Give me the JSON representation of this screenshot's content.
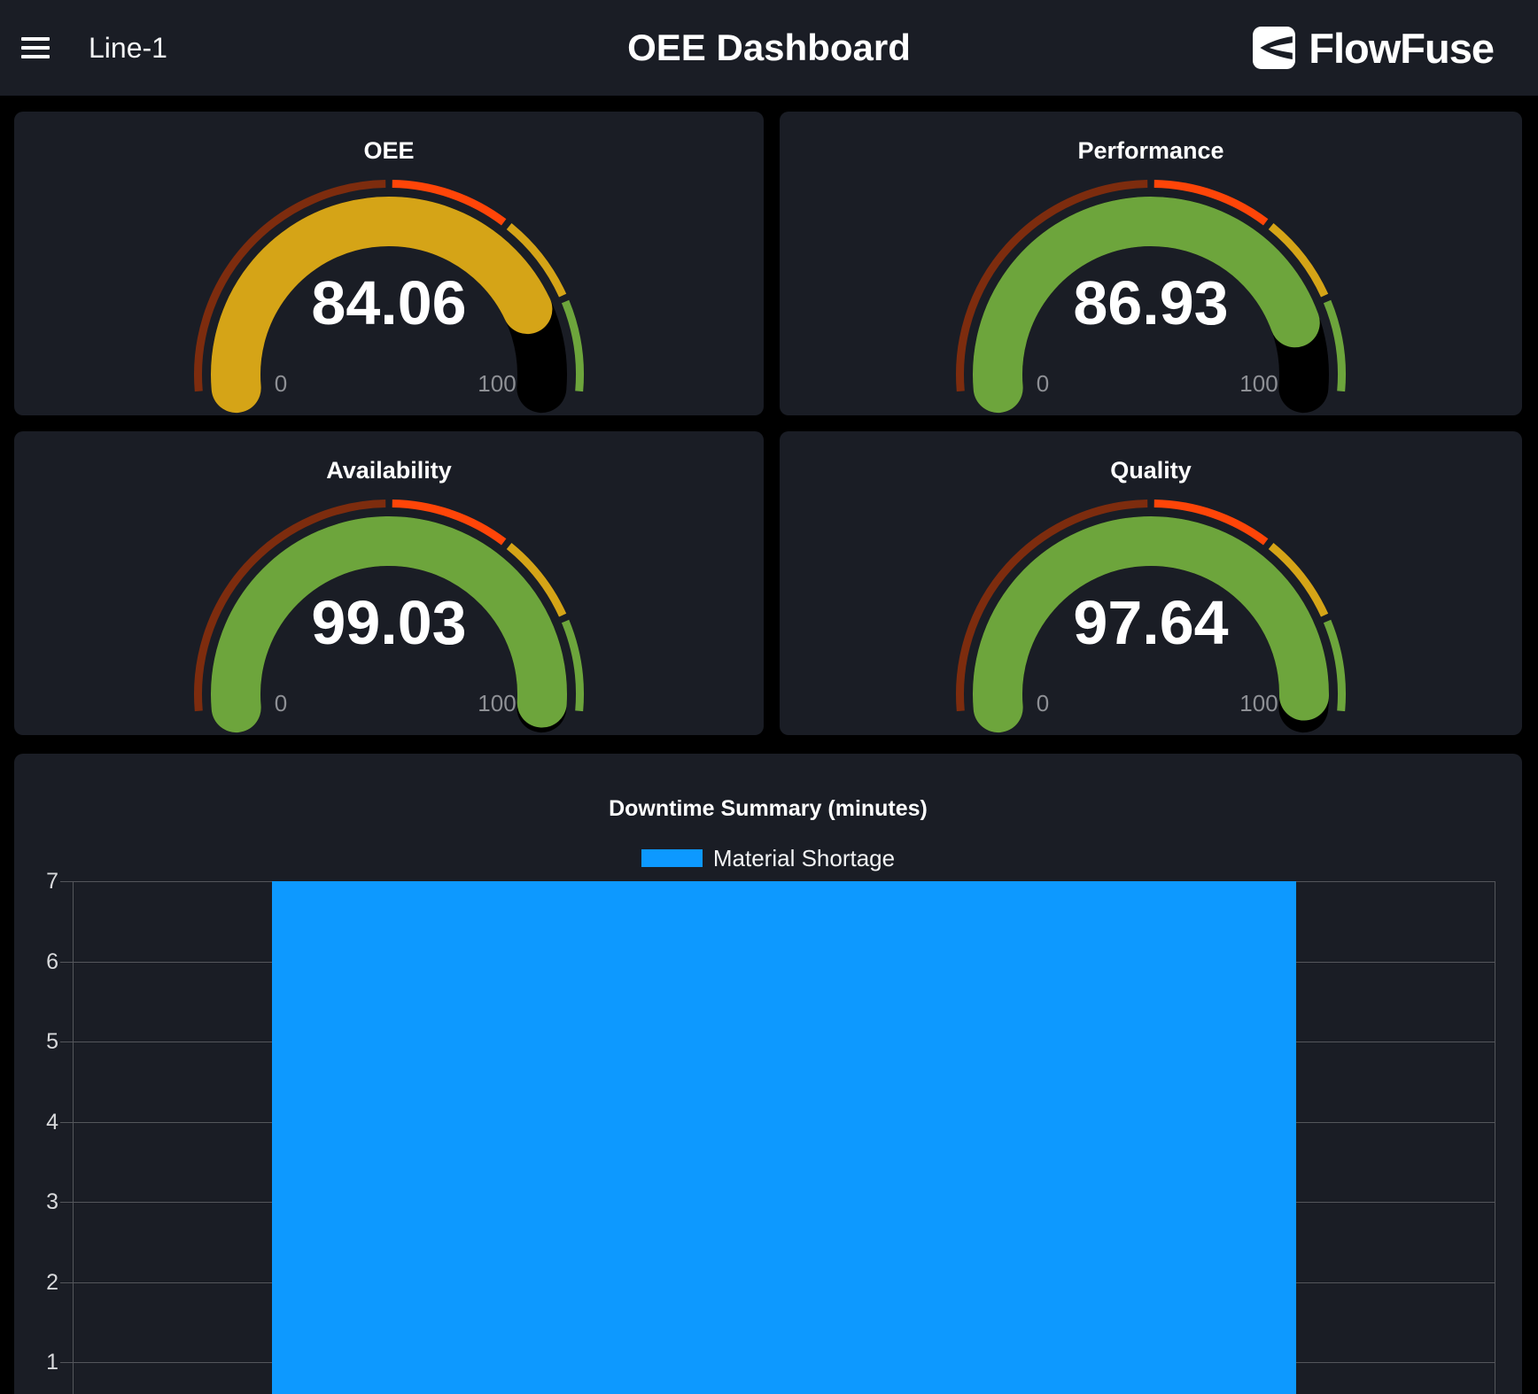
{
  "header": {
    "nav_label": "Line-1",
    "title": "OEE Dashboard",
    "brand": "FlowFuse"
  },
  "gauges": [
    {
      "title": "OEE",
      "value": "84.06",
      "min": "0",
      "max": "100",
      "color": "#D5A417"
    },
    {
      "title": "Performance",
      "value": "86.93",
      "min": "0",
      "max": "100",
      "color": "#6DA53C"
    },
    {
      "title": "Availability",
      "value": "99.03",
      "min": "0",
      "max": "100",
      "color": "#6DA53C"
    },
    {
      "title": "Quality",
      "value": "97.64",
      "min": "0",
      "max": "100",
      "color": "#6DA53C"
    }
  ],
  "gauge_bands": [
    {
      "from": 0,
      "to": 50,
      "color": "#7D2C0E"
    },
    {
      "from": 50,
      "to": 70,
      "color": "#FF4508"
    },
    {
      "from": 70,
      "to": 85,
      "color": "#D5A417"
    },
    {
      "from": 85,
      "to": 100,
      "color": "#6DA53C"
    }
  ],
  "chart_data": {
    "type": "bar",
    "title": "Downtime Summary (minutes)",
    "categories": [
      "Material Shortage"
    ],
    "series": [
      {
        "name": "Material Shortage",
        "color": "#0D99FF",
        "values": [
          7
        ]
      }
    ],
    "ylim": [
      0,
      7
    ],
    "yticks": [
      7,
      6,
      5,
      4,
      3,
      2,
      1
    ],
    "legend_position": "top",
    "grid": true
  },
  "colors": {
    "page_bg": "#000000",
    "card_bg": "#1A1D25",
    "grid": "#54565B",
    "tick_label": "#D8D9DB",
    "minmax_label": "#8E9095",
    "track": "#000000",
    "bar": "#0D99FF"
  }
}
